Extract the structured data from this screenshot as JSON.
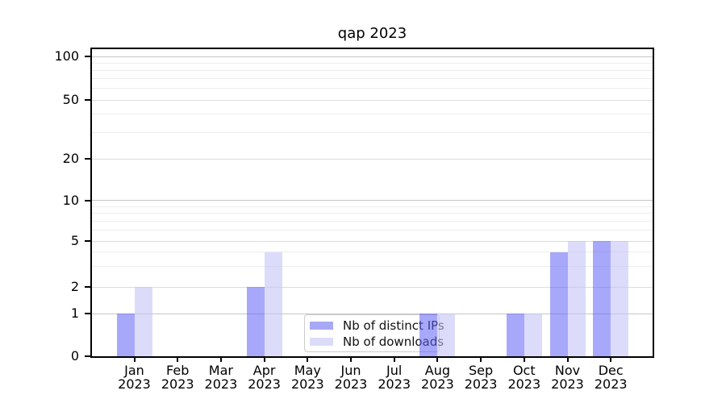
{
  "title": "qap 2023",
  "chart_data": {
    "type": "bar",
    "title": "qap 2023",
    "categories": [
      "Jan 2023",
      "Feb 2023",
      "Mar 2023",
      "Apr 2023",
      "May 2023",
      "Jun 2023",
      "Jul 2023",
      "Aug 2023",
      "Sep 2023",
      "Oct 2023",
      "Nov 2023",
      "Dec 2023"
    ],
    "months": [
      "Jan",
      "Feb",
      "Mar",
      "Apr",
      "May",
      "Jun",
      "Jul",
      "Aug",
      "Sep",
      "Oct",
      "Nov",
      "Dec"
    ],
    "year": "2023",
    "series": [
      {
        "name": "Nb of distinct IPs",
        "values": [
          1,
          0,
          0,
          2,
          0,
          0,
          0,
          1,
          0,
          1,
          4,
          5
        ],
        "fill": "rgba(97,97,245,0.55)",
        "swatch_color": "#a8a8f4"
      },
      {
        "name": "Nb of downloads",
        "values": [
          2,
          0,
          0,
          4,
          0,
          0,
          0,
          1,
          0,
          1,
          5,
          5
        ],
        "fill": "rgba(195,195,247,0.58)",
        "swatch_color": "#dcdcf9"
      }
    ],
    "yticks": [
      0,
      1,
      2,
      5,
      10,
      20,
      50,
      100
    ],
    "minor_gridline_values": [
      3,
      4,
      6,
      7,
      8,
      9,
      30,
      40,
      60,
      70,
      80,
      90
    ],
    "ylim": [
      0,
      100
    ],
    "yscale": "log-like (linear below 1)",
    "grid": true,
    "legend_position": "inside-bottom-center",
    "colors": {
      "bar_dark_rendered": "#a8a8f8",
      "bar_light_rendered": "#dcdcfa",
      "grid_major": "#c6c6c6",
      "grid_mid": "#dcdcdd",
      "grid_minor": "#ededed",
      "frame": "#000000",
      "legend_border": "#cccccc"
    }
  }
}
